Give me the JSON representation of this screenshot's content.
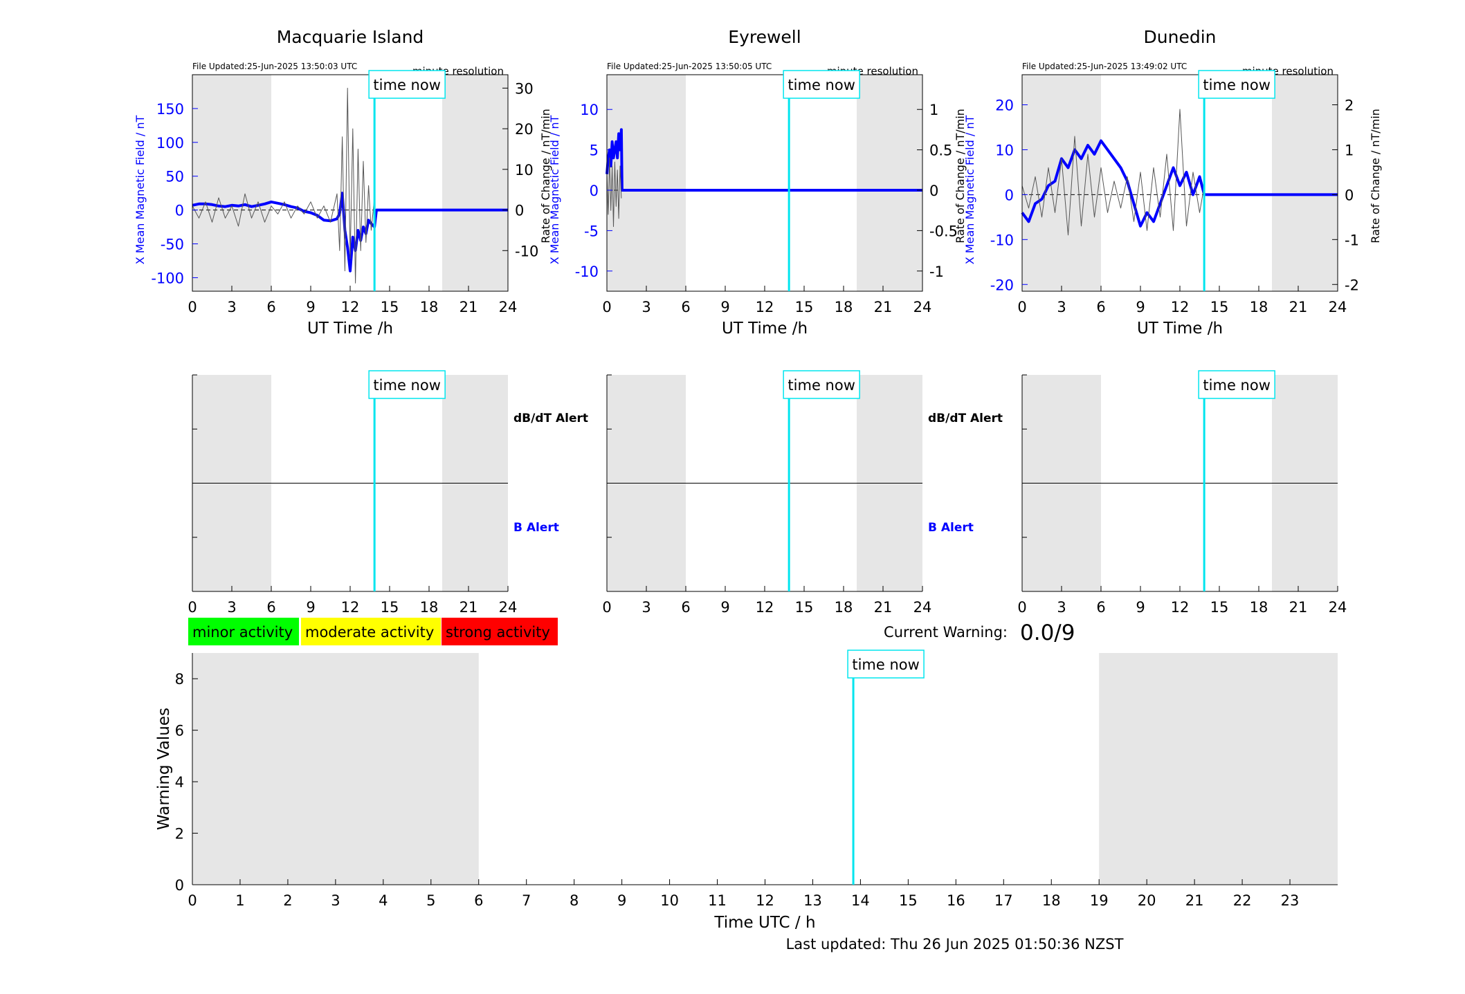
{
  "chart_data": [
    {
      "type": "line",
      "title": "Macquarie Island",
      "file_updated": "File Updated:25-Jun-2025 13:50:03 UTC",
      "resolution": "minute resolution",
      "xlabel": "UT Time /h",
      "ylabel_left": "X Mean Magnetic Field / nT",
      "ylabel_right": "Rate of Change / nT/min",
      "xlim": [
        0,
        24
      ],
      "ylim_left": [
        -120,
        200
      ],
      "ylim_right": [
        -20,
        33.3
      ],
      "xticks": [
        0,
        3,
        6,
        9,
        12,
        15,
        18,
        21,
        24
      ],
      "yticks_left": [
        -100,
        -50,
        0,
        50,
        100,
        150
      ],
      "yticks_right": [
        -10,
        0,
        10,
        20,
        30
      ],
      "shaded_ranges": [
        [
          0,
          6
        ],
        [
          19,
          24
        ]
      ],
      "time_now": 13.85,
      "time_now_label": "time now",
      "series": [
        {
          "axis": "left",
          "color": "#0000ff",
          "x": [
            0,
            0.5,
            1,
            1.5,
            2,
            2.5,
            3,
            3.5,
            4,
            4.5,
            5,
            5.5,
            6,
            6.5,
            7,
            7.5,
            8,
            8.5,
            9,
            9.5,
            10,
            10.5,
            11,
            11.2,
            11.4,
            11.6,
            11.8,
            12,
            12.2,
            12.4,
            12.6,
            12.8,
            13,
            13.2,
            13.4,
            13.6,
            13.85,
            14,
            24
          ],
          "y": [
            7,
            9,
            9,
            8,
            6,
            5,
            7,
            6,
            8,
            5,
            7,
            9,
            12,
            10,
            8,
            5,
            3,
            -2,
            -4,
            -8,
            -15,
            -16,
            -13,
            -5,
            25,
            -30,
            -55,
            -90,
            -40,
            -60,
            -30,
            -45,
            -25,
            -35,
            -15,
            -20,
            -25,
            0,
            0
          ]
        },
        {
          "axis": "right",
          "color": "#555555",
          "kind": "rate",
          "x": [
            0,
            0.5,
            1,
            1.5,
            2,
            2.5,
            3,
            3.5,
            4,
            4.5,
            5,
            5.5,
            6,
            6.5,
            7,
            7.5,
            8,
            8.5,
            9,
            9.5,
            10,
            10.5,
            11,
            11.2,
            11.4,
            11.6,
            11.8,
            12,
            12.2,
            12.4,
            12.6,
            12.8,
            13,
            13.2,
            13.4,
            13.6,
            13.85
          ],
          "y": [
            1,
            -2,
            2,
            -3,
            3,
            -2,
            1,
            -4,
            4,
            -2,
            2,
            -3,
            1,
            -1,
            2,
            -2,
            1,
            -1,
            2,
            -2,
            1,
            -3,
            4,
            -10,
            18,
            -15,
            30,
            -12,
            20,
            -18,
            15,
            -10,
            12,
            -8,
            6,
            -5,
            3
          ]
        }
      ]
    },
    {
      "type": "line",
      "title": "Eyrewell",
      "file_updated": "File Updated:25-Jun-2025 13:50:05 UTC",
      "resolution": "minute resolution",
      "xlabel": "UT Time /h",
      "ylabel_left": "X Mean Magnetic Field / nT",
      "ylabel_right": "Rate of Change / nT/min",
      "xlim": [
        0,
        24
      ],
      "ylim_left": [
        -12.5,
        14.3
      ],
      "ylim_right": [
        -1.25,
        1.43
      ],
      "xticks": [
        0,
        3,
        6,
        9,
        12,
        15,
        18,
        21,
        24
      ],
      "yticks_left": [
        -10,
        -5,
        0,
        5,
        10
      ],
      "yticks_right": [
        -1,
        -0.5,
        0,
        0.5,
        1
      ],
      "shaded_ranges": [
        [
          0,
          6
        ],
        [
          19,
          24
        ]
      ],
      "time_now": 13.85,
      "time_now_label": "time now",
      "series": [
        {
          "axis": "left",
          "color": "#0000ff",
          "x": [
            0,
            0.1,
            0.2,
            0.3,
            0.4,
            0.5,
            0.6,
            0.7,
            0.8,
            0.9,
            1.0,
            1.1,
            1.15,
            24
          ],
          "y": [
            2,
            4,
            5,
            3,
            6,
            4,
            5,
            6,
            4,
            7,
            5,
            7.5,
            0,
            0
          ]
        },
        {
          "axis": "right",
          "color": "#555555",
          "kind": "rate",
          "x": [
            0,
            0.1,
            0.2,
            0.3,
            0.4,
            0.5,
            0.6,
            0.7,
            0.8,
            0.9,
            1.0,
            1.1
          ],
          "y": [
            0.2,
            -0.3,
            0.4,
            -0.25,
            0.3,
            -0.45,
            0.35,
            -0.2,
            0.25,
            -0.35,
            0.3,
            -0.1
          ]
        }
      ]
    },
    {
      "type": "line",
      "title": "Dunedin",
      "file_updated": "File Updated:25-Jun-2025 13:49:02 UTC",
      "resolution": "minute resolution",
      "xlabel": "UT Time /h",
      "ylabel_left": "X Mean Magnetic Field / nT",
      "ylabel_right": "Rate of Change / nT/min",
      "xlim": [
        0,
        24
      ],
      "ylim_left": [
        -21.5,
        26.7
      ],
      "ylim_right": [
        -2.15,
        2.67
      ],
      "xticks": [
        0,
        3,
        6,
        9,
        12,
        15,
        18,
        21,
        24
      ],
      "yticks_left": [
        -20,
        -10,
        0,
        10,
        20
      ],
      "yticks_right": [
        -2,
        -1,
        0,
        1,
        2
      ],
      "shaded_ranges": [
        [
          0,
          6
        ],
        [
          19,
          24
        ]
      ],
      "time_now": 13.85,
      "time_now_label": "time now",
      "series": [
        {
          "axis": "left",
          "color": "#0000ff",
          "x": [
            0,
            0.5,
            1,
            1.5,
            2,
            2.5,
            3,
            3.5,
            4,
            4.5,
            5,
            5.5,
            6,
            6.5,
            7,
            7.5,
            8,
            8.5,
            9,
            9.5,
            10,
            10.5,
            11,
            11.5,
            12,
            12.5,
            13,
            13.5,
            13.85,
            14,
            24
          ],
          "y": [
            -4,
            -6,
            -2,
            -1,
            2,
            3,
            8,
            6,
            10,
            8,
            11,
            9,
            12,
            10,
            8,
            6,
            3,
            -2,
            -7,
            -4,
            -6,
            -2,
            2,
            6,
            2,
            5,
            0,
            4,
            0,
            0,
            0
          ]
        },
        {
          "axis": "right",
          "color": "#555555",
          "kind": "rate",
          "x": [
            0,
            0.5,
            1,
            1.5,
            2,
            2.5,
            3,
            3.5,
            4,
            4.5,
            5,
            5.5,
            6,
            6.5,
            7,
            7.5,
            8,
            8.5,
            9,
            9.5,
            10,
            10.5,
            11,
            11.5,
            12,
            12.5,
            13,
            13.5,
            13.85
          ],
          "y": [
            0.2,
            -0.3,
            0.4,
            -0.5,
            0.6,
            -0.4,
            0.8,
            -0.9,
            1.3,
            -0.7,
            0.9,
            -0.5,
            0.6,
            -0.4,
            0.3,
            -0.3,
            0.4,
            -0.6,
            0.5,
            -0.8,
            0.6,
            -0.5,
            0.9,
            -0.8,
            1.9,
            -0.7,
            0.5,
            -0.4,
            0.2
          ]
        }
      ]
    },
    {
      "type": "line",
      "role": "alert",
      "xlim": [
        0,
        24
      ],
      "xticks": [
        0,
        3,
        6,
        9,
        12,
        15,
        18,
        21,
        24
      ],
      "shaded_ranges": [
        [
          0,
          6
        ],
        [
          19,
          24
        ]
      ],
      "time_now": 13.85,
      "time_now_label": "time now",
      "label_dbdt": "dB/dT Alert",
      "label_b": "B Alert"
    },
    {
      "type": "line",
      "role": "alert",
      "xlim": [
        0,
        24
      ],
      "xticks": [
        0,
        3,
        6,
        9,
        12,
        15,
        18,
        21,
        24
      ],
      "shaded_ranges": [
        [
          0,
          6
        ],
        [
          19,
          24
        ]
      ],
      "time_now": 13.85,
      "time_now_label": "time now",
      "label_dbdt": "dB/dT Alert",
      "label_b": "B Alert"
    },
    {
      "type": "line",
      "role": "alert",
      "xlim": [
        0,
        24
      ],
      "xticks": [
        0,
        3,
        6,
        9,
        12,
        15,
        18,
        21,
        24
      ],
      "shaded_ranges": [
        [
          0,
          6
        ],
        [
          19,
          24
        ]
      ],
      "time_now": 13.85,
      "time_now_label": "time now"
    },
    {
      "type": "line",
      "role": "warning",
      "xlabel": "Time UTC / h",
      "ylabel": "Warning Values",
      "xlim": [
        0,
        24
      ],
      "ylim": [
        0,
        9
      ],
      "xticks": [
        0,
        1,
        2,
        3,
        4,
        5,
        6,
        7,
        8,
        9,
        10,
        11,
        12,
        13,
        14,
        15,
        16,
        17,
        18,
        19,
        20,
        21,
        22,
        23
      ],
      "yticks": [
        0,
        2,
        4,
        6,
        8
      ],
      "shaded_ranges": [
        [
          0,
          6
        ],
        [
          19,
          24
        ]
      ],
      "time_now": 13.85,
      "time_now_label": "time now"
    }
  ],
  "legend": {
    "items": [
      {
        "label": "minor activity",
        "color": "#00ff00"
      },
      {
        "label": "moderate activity",
        "color": "#ffff00"
      },
      {
        "label": "strong activity",
        "color": "#ff0000"
      }
    ]
  },
  "current_warning": {
    "label": "Current Warning:",
    "value": "0.0/9"
  },
  "footer": {
    "last_updated": "Last updated: Thu 26 Jun 2025 01:50:36 NZST"
  },
  "colors": {
    "shade": "#e6e6e6",
    "time_now": "#00e5ee",
    "field": "#0000ff",
    "rate": "#555555",
    "axis_left": "#0000ff"
  }
}
